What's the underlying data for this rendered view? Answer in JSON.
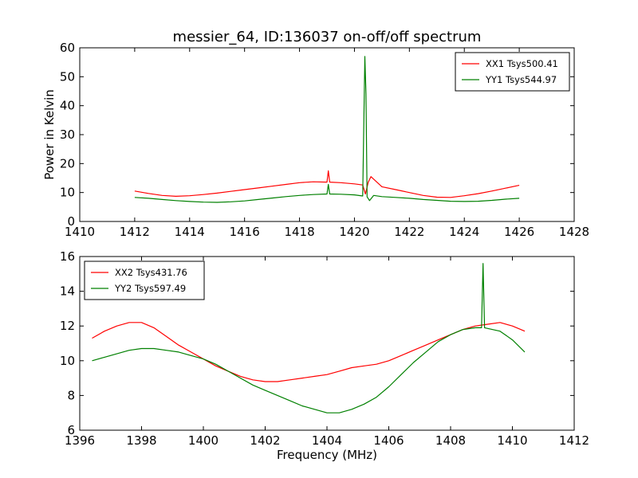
{
  "chart_data": [
    {
      "type": "line",
      "title": "messier_64, ID:136037 on-off/off spectrum",
      "xlabel": "",
      "ylabel": "Power in Kelvin",
      "xlim": [
        1410,
        1428
      ],
      "ylim": [
        0,
        60
      ],
      "xticks": [
        "1410",
        "1412",
        "1414",
        "1416",
        "1418",
        "1420",
        "1422",
        "1424",
        "1426",
        "1428"
      ],
      "yticks": [
        "0",
        "10",
        "20",
        "30",
        "40",
        "50",
        "60"
      ],
      "legend_position": "top-right",
      "grid": false,
      "series": [
        {
          "name": "XX1 Tsys500.41",
          "color": "#ff0000",
          "x": [
            1412.0,
            1412.5,
            1413.0,
            1413.5,
            1414.0,
            1414.5,
            1415.0,
            1415.5,
            1416.0,
            1416.5,
            1417.0,
            1417.5,
            1418.0,
            1418.5,
            1419.0,
            1419.05,
            1419.1,
            1419.5,
            1420.0,
            1420.3,
            1420.4,
            1420.5,
            1420.6,
            1421.0,
            1421.5,
            1422.0,
            1422.5,
            1423.0,
            1423.5,
            1424.0,
            1424.5,
            1425.0,
            1425.5,
            1426.0
          ],
          "y": [
            10.5,
            9.7,
            9.0,
            8.7,
            8.9,
            9.3,
            9.8,
            10.4,
            11.0,
            11.6,
            12.2,
            12.8,
            13.4,
            13.7,
            13.6,
            17.5,
            13.6,
            13.4,
            13.0,
            12.6,
            9.5,
            13.5,
            15.5,
            12.0,
            11.0,
            10.0,
            9.0,
            8.4,
            8.3,
            8.9,
            9.6,
            10.5,
            11.5,
            12.5
          ]
        },
        {
          "name": "YY1 Tsys544.97",
          "color": "#008000",
          "x": [
            1412.0,
            1412.5,
            1413.0,
            1413.5,
            1414.0,
            1414.5,
            1415.0,
            1415.5,
            1416.0,
            1416.5,
            1417.0,
            1417.5,
            1418.0,
            1418.5,
            1419.0,
            1419.05,
            1419.1,
            1419.5,
            1420.0,
            1420.3,
            1420.38,
            1420.42,
            1420.46,
            1420.55,
            1420.7,
            1421.0,
            1421.5,
            1422.0,
            1422.5,
            1423.0,
            1423.5,
            1424.0,
            1424.5,
            1425.0,
            1425.5,
            1426.0
          ],
          "y": [
            8.3,
            8.0,
            7.6,
            7.2,
            6.9,
            6.7,
            6.6,
            6.8,
            7.1,
            7.6,
            8.1,
            8.6,
            9.0,
            9.3,
            9.5,
            12.8,
            9.5,
            9.4,
            9.2,
            8.8,
            57.0,
            44.0,
            8.5,
            7.2,
            9.0,
            8.6,
            8.3,
            8.0,
            7.6,
            7.3,
            7.0,
            6.9,
            7.0,
            7.3,
            7.7,
            8.0
          ]
        }
      ]
    },
    {
      "type": "line",
      "title": "",
      "xlabel": "Frequency (MHz)",
      "ylabel": "",
      "xlim": [
        1396,
        1412
      ],
      "ylim": [
        6,
        16
      ],
      "xticks": [
        "1396",
        "1398",
        "1400",
        "1402",
        "1404",
        "1406",
        "1408",
        "1410",
        "1412"
      ],
      "yticks": [
        "6",
        "8",
        "10",
        "12",
        "14",
        "16"
      ],
      "legend_position": "top-left",
      "grid": false,
      "series": [
        {
          "name": "XX2 Tsys431.76",
          "color": "#ff0000",
          "x": [
            1396.4,
            1396.8,
            1397.2,
            1397.6,
            1398.0,
            1398.4,
            1398.8,
            1399.2,
            1399.6,
            1400.0,
            1400.4,
            1400.8,
            1401.2,
            1401.6,
            1402.0,
            1402.4,
            1402.8,
            1403.2,
            1403.6,
            1404.0,
            1404.4,
            1404.8,
            1405.2,
            1405.6,
            1406.0,
            1406.4,
            1406.8,
            1407.2,
            1407.6,
            1408.0,
            1408.4,
            1408.8,
            1409.2,
            1409.6,
            1410.0,
            1410.4
          ],
          "y": [
            11.3,
            11.7,
            12.0,
            12.2,
            12.2,
            11.9,
            11.4,
            10.9,
            10.5,
            10.1,
            9.7,
            9.4,
            9.1,
            8.9,
            8.8,
            8.8,
            8.9,
            9.0,
            9.1,
            9.2,
            9.4,
            9.6,
            9.7,
            9.8,
            10.0,
            10.3,
            10.6,
            10.9,
            11.2,
            11.5,
            11.8,
            12.0,
            12.1,
            12.2,
            12.0,
            11.7
          ]
        },
        {
          "name": "YY2 Tsys597.49",
          "color": "#008000",
          "x": [
            1396.4,
            1396.8,
            1397.2,
            1397.6,
            1398.0,
            1398.4,
            1398.8,
            1399.2,
            1399.6,
            1400.0,
            1400.4,
            1400.8,
            1401.2,
            1401.6,
            1402.0,
            1402.4,
            1402.8,
            1403.2,
            1403.6,
            1404.0,
            1404.4,
            1404.8,
            1405.2,
            1405.6,
            1406.0,
            1406.4,
            1406.8,
            1407.2,
            1407.6,
            1408.0,
            1408.4,
            1408.8,
            1409.0,
            1409.05,
            1409.1,
            1409.6,
            1410.0,
            1410.4
          ],
          "y": [
            10.0,
            10.2,
            10.4,
            10.6,
            10.7,
            10.7,
            10.6,
            10.5,
            10.3,
            10.1,
            9.8,
            9.4,
            9.0,
            8.6,
            8.3,
            8.0,
            7.7,
            7.4,
            7.2,
            7.0,
            7.0,
            7.2,
            7.5,
            7.9,
            8.5,
            9.2,
            9.9,
            10.5,
            11.1,
            11.5,
            11.8,
            11.9,
            11.9,
            15.6,
            11.9,
            11.7,
            11.2,
            10.5
          ]
        }
      ]
    }
  ]
}
